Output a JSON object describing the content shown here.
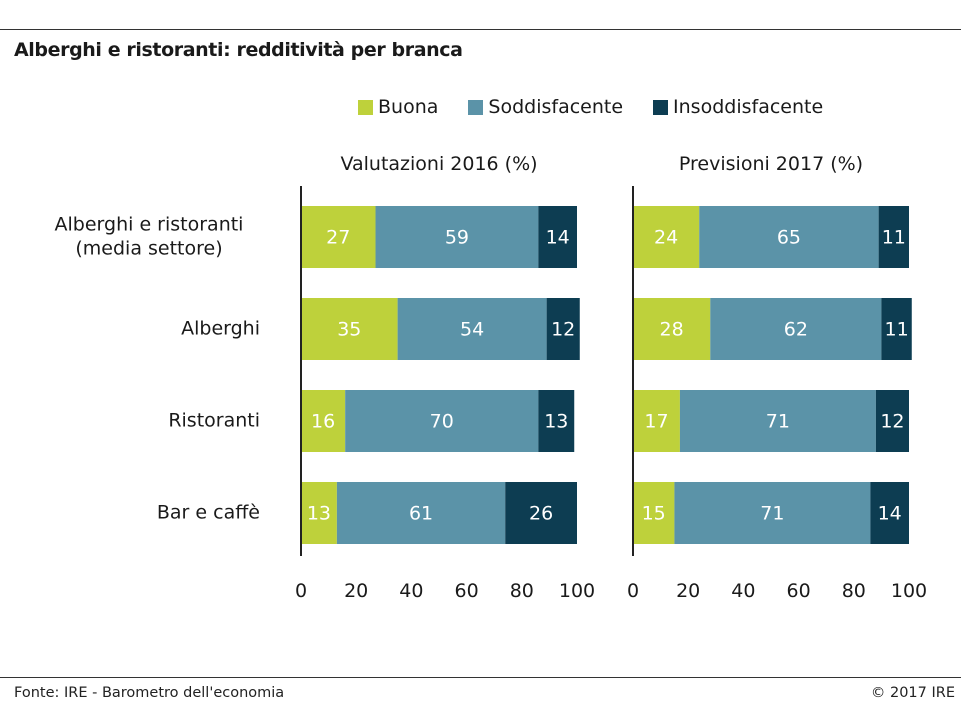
{
  "header": {
    "title": "Alberghi e ristoranti: redditività per branca"
  },
  "footer": {
    "source": "Fonte: IRE - Barometro dell'economia",
    "copyright": "© 2017 IRE"
  },
  "colors": {
    "Buona": "#bed13b",
    "Soddisfacente": "#5b93a8",
    "Insoddisfacente": "#0d3d52",
    "rule": "#333333",
    "axis": "#222222"
  },
  "chart_data": {
    "type": "bar",
    "orientation": "horizontal",
    "stacked": true,
    "legend": {
      "placement": "top",
      "entries": [
        "Buona",
        "Soddisfacente",
        "Insoddisfacente"
      ]
    },
    "grid": false,
    "categories": [
      [
        "Alberghi e ristoranti",
        "(media settore)"
      ],
      [
        "Alberghi"
      ],
      [
        "Ristoranti"
      ],
      [
        "Bar e caffè"
      ]
    ],
    "panels": [
      {
        "title": "Valutazioni 2016 (%)",
        "xlim": [
          0,
          100
        ],
        "xticks": [
          0,
          20,
          40,
          60,
          80,
          100
        ],
        "series": [
          {
            "name": "Buona",
            "values": [
              27,
              35,
              16,
              13
            ]
          },
          {
            "name": "Soddisfacente",
            "values": [
              59,
              54,
              70,
              61
            ]
          },
          {
            "name": "Insoddisfacente",
            "values": [
              14,
              12,
              13,
              26
            ]
          }
        ]
      },
      {
        "title": "Previsioni 2017 (%)",
        "xlim": [
          0,
          100
        ],
        "xticks": [
          0,
          20,
          40,
          60,
          80,
          100
        ],
        "series": [
          {
            "name": "Buona",
            "values": [
              24,
              28,
              17,
              15
            ]
          },
          {
            "name": "Soddisfacente",
            "values": [
              65,
              62,
              71,
              71
            ]
          },
          {
            "name": "Insoddisfacente",
            "values": [
              11,
              11,
              12,
              14
            ]
          }
        ]
      }
    ]
  }
}
